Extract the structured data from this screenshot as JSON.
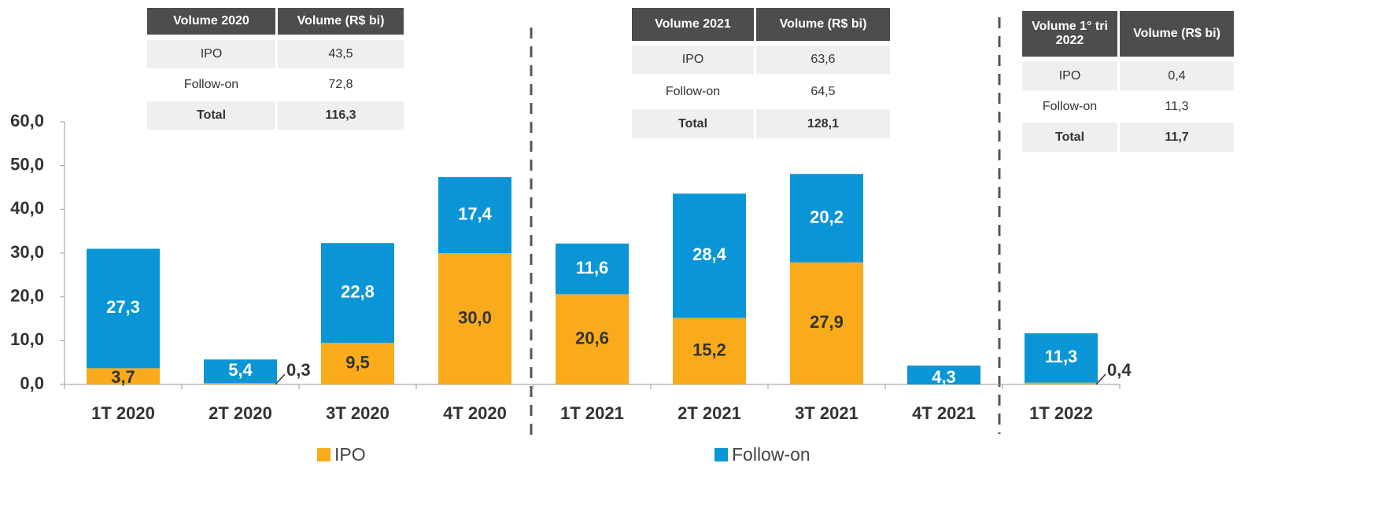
{
  "chart_data": {
    "type": "bar",
    "stacked": true,
    "categories": [
      "1T 2020",
      "2T 2020",
      "3T 2020",
      "4T 2020",
      "1T 2021",
      "2T 2021",
      "3T 2021",
      "4T 2021",
      "1T 2022"
    ],
    "series": [
      {
        "name": "IPO",
        "color": "#f9ab1b",
        "values": [
          3.7,
          0.3,
          9.5,
          30.0,
          20.6,
          15.2,
          27.9,
          null,
          0.4
        ],
        "value_labels": [
          "3,7",
          "0,3",
          "9,5",
          "30,0",
          "20,6",
          "15,2",
          "27,9",
          null,
          "0,4"
        ]
      },
      {
        "name": "Follow-on",
        "color": "#0a96d6",
        "values": [
          27.3,
          5.4,
          22.8,
          17.4,
          11.6,
          28.4,
          20.2,
          4.3,
          11.3
        ],
        "value_labels": [
          "27,3",
          "5,4",
          "22,8",
          "17,4",
          "11,6",
          "28,4",
          "20,2",
          "4,3",
          "11,3"
        ]
      }
    ],
    "ylim": [
      0,
      60
    ],
    "yticks": [
      {
        "value": 0,
        "label": "0,0"
      },
      {
        "value": 10,
        "label": "10,0"
      },
      {
        "value": 20,
        "label": "20,0"
      },
      {
        "value": 30,
        "label": "30,0"
      },
      {
        "value": 40,
        "label": "40,0"
      },
      {
        "value": 50,
        "label": "50,0"
      },
      {
        "value": 60,
        "label": "60,0"
      }
    ],
    "grid": false,
    "legend": "bottom"
  },
  "tables": [
    {
      "header": [
        "Volume 2020",
        "Volume (R$ bi)"
      ],
      "rows": [
        [
          "IPO",
          "43,5"
        ],
        [
          "Follow-on",
          "72,8"
        ],
        [
          "Total",
          "116,3"
        ]
      ]
    },
    {
      "header": [
        "Volume 2021",
        "Volume (R$ bi)"
      ],
      "rows": [
        [
          "IPO",
          "63,6"
        ],
        [
          "Follow-on",
          "64,5"
        ],
        [
          "Total",
          "128,1"
        ]
      ]
    },
    {
      "header": [
        "Volume 1° tri 2022",
        "Volume (R$ bi)"
      ],
      "rows": [
        [
          "IPO",
          "0,4"
        ],
        [
          "Follow-on",
          "11,3"
        ],
        [
          "Total",
          "11,7"
        ]
      ]
    }
  ]
}
